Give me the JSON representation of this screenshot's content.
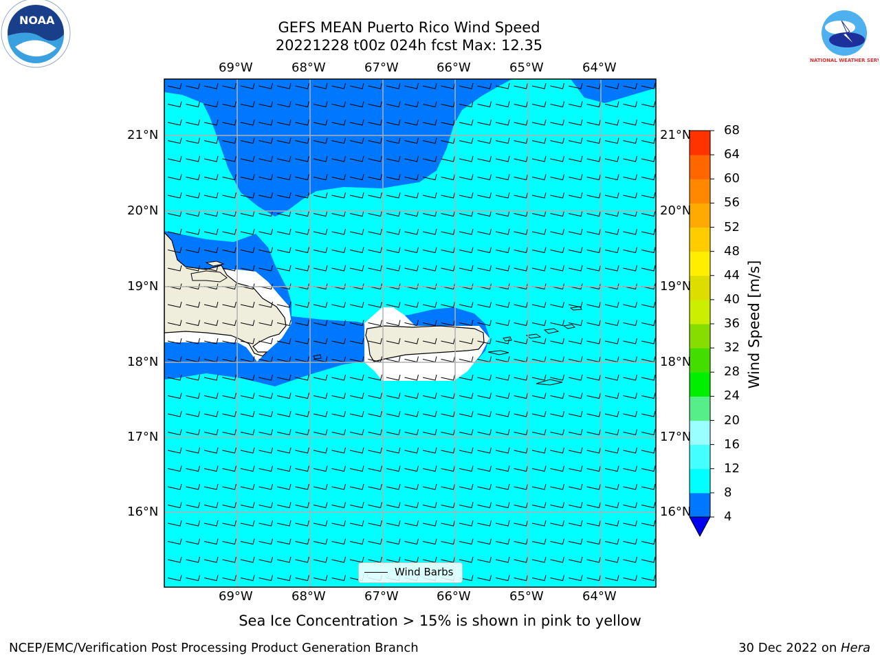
{
  "title": {
    "line1": "GEFS MEAN Puerto Rico Wind Speed",
    "line2": "20221228 t00z 024h fcst   Max: 12.35"
  },
  "logos": {
    "left": "NOAA",
    "right": "NATIONAL WEATHER SERVICE"
  },
  "map": {
    "lon_ticks": [
      "69°W",
      "68°W",
      "67°W",
      "66°W",
      "65°W",
      "64°W"
    ],
    "lat_ticks": [
      "21°N",
      "20°N",
      "19°N",
      "18°N",
      "17°N",
      "16°N"
    ],
    "legend_label": "Wind Barbs"
  },
  "colorbar": {
    "title": "Wind Speed [m/s]",
    "tick_labels": [
      "4",
      "8",
      "12",
      "16",
      "20",
      "24",
      "28",
      "32",
      "36",
      "40",
      "44",
      "48",
      "52",
      "56",
      "60",
      "64",
      "68"
    ],
    "colors": [
      "#0077ff",
      "#00ffff",
      "#44ffff",
      "#99ffff",
      "#55ee88",
      "#00ee00",
      "#44dd00",
      "#88dd00",
      "#ccee00",
      "#dddd00",
      "#ffee00",
      "#ffcc00",
      "#ffaa00",
      "#ff8800",
      "#ff6600",
      "#ff3300",
      "#ff0000"
    ],
    "under_color": "#0000ee"
  },
  "note": "Sea Ice Concentration > 15% is shown in pink to yellow",
  "footer": {
    "left": "NCEP/EMC/Verification Post Processing Product Generation Branch",
    "right_prefix": "30 Dec 2022 on ",
    "right_host": "Hera"
  },
  "map_colors": {
    "cyan": "#00ffff",
    "blue": "#0077ff",
    "dark_blue": "#0000ee",
    "land": "#efeedd",
    "grid": "#b0b0b0"
  },
  "chart_data": {
    "type": "heatmap",
    "title": "GEFS MEAN Puerto Rico Wind Speed",
    "subtitle": "20221228 t00z 024h fcst   Max: 12.35",
    "x_ticks": [
      "69°W",
      "68°W",
      "67°W",
      "66°W",
      "65°W",
      "64°W"
    ],
    "y_ticks": [
      "21°N",
      "20°N",
      "19°N",
      "18°N",
      "17°N",
      "16°N"
    ],
    "colorbar_label": "Wind Speed [m/s]",
    "levels": [
      4,
      8,
      12,
      16,
      20,
      24,
      28,
      32,
      36,
      40,
      44,
      48,
      52,
      56,
      60,
      64,
      68
    ],
    "max": 12.35,
    "legend": [
      "Wind Barbs"
    ]
  }
}
